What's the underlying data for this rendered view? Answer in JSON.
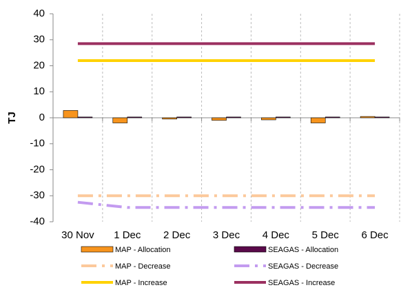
{
  "chart_data": {
    "type": "combo",
    "y_label": "TJ",
    "categories": [
      "30 Nov",
      "1 Dec",
      "2 Dec",
      "3 Dec",
      "4 Dec",
      "5 Dec",
      "6 Dec"
    ],
    "ylim": [
      -40,
      40
    ],
    "yticks": [
      -40,
      -30,
      -20,
      -10,
      0,
      10,
      20,
      30,
      40
    ],
    "series": [
      {
        "name": "MAP - Allocation",
        "type": "bar",
        "color": "#f7941d",
        "values": [
          2.8,
          -2,
          -0.5,
          -1,
          -0.8,
          -2,
          0.5
        ]
      },
      {
        "name": "SEAGAS - Allocation",
        "type": "bar",
        "color": "#5a0a4a",
        "values": [
          0.3,
          0.3,
          0.3,
          0.3,
          0.3,
          0.3,
          0.3
        ]
      },
      {
        "name": "MAP - Decrease",
        "type": "line",
        "dashed": true,
        "color": "#fcc99b",
        "values": [
          -30,
          -30,
          -30,
          -30,
          -30,
          -30,
          -30
        ]
      },
      {
        "name": "SEAGAS - Decrease",
        "type": "line",
        "dashed": true,
        "color": "#c39bf0",
        "values": [
          -32.5,
          -34.5,
          -34.5,
          -34.5,
          -34.5,
          -34.5,
          -34.5
        ]
      },
      {
        "name": "MAP - Increase",
        "type": "line",
        "dashed": false,
        "color": "#ffd200",
        "values": [
          22,
          22,
          22,
          22,
          22,
          22,
          22
        ]
      },
      {
        "name": "SEAGAS - Increase",
        "type": "line",
        "dashed": false,
        "color": "#9b3060",
        "values": [
          28.5,
          28.5,
          28.5,
          28.5,
          28.5,
          28.5,
          28.5
        ]
      }
    ]
  }
}
